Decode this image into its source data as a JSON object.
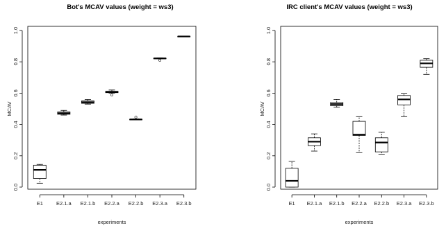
{
  "chart_data": [
    {
      "type": "boxplot",
      "title": "Bot's MCAV values (weight = ws3)",
      "xlabel": "experiments",
      "ylabel": "MCAV",
      "ylim": [
        0,
        1.0
      ],
      "yticks": [
        "0.0",
        "0.2",
        "0.4",
        "0.6",
        "0.8",
        "1.0"
      ],
      "categories": [
        "E1",
        "E2.1.a",
        "E2.1.b",
        "E2.2.a",
        "E2.2.b",
        "E2.3.a",
        "E2.3.b"
      ],
      "boxes": [
        {
          "min": 0.025,
          "q1": 0.055,
          "median": 0.11,
          "q3": 0.14,
          "max": 0.145,
          "outliers": []
        },
        {
          "min": 0.46,
          "q1": 0.465,
          "median": 0.472,
          "q3": 0.48,
          "max": 0.49,
          "outliers": []
        },
        {
          "min": 0.53,
          "q1": 0.535,
          "median": 0.542,
          "q3": 0.55,
          "max": 0.56,
          "outliers": []
        },
        {
          "min": 0.6,
          "q1": 0.603,
          "median": 0.607,
          "q3": 0.612,
          "max": 0.62,
          "outliers": [
            0.588
          ]
        },
        {
          "min": 0.43,
          "q1": 0.431,
          "median": 0.432,
          "q3": 0.433,
          "max": 0.435,
          "outliers": [
            0.447
          ]
        },
        {
          "min": 0.82,
          "q1": 0.821,
          "median": 0.822,
          "q3": 0.823,
          "max": 0.825,
          "outliers": [
            0.81
          ]
        },
        {
          "min": 0.96,
          "q1": 0.961,
          "median": 0.962,
          "q3": 0.963,
          "max": 0.965,
          "outliers": []
        }
      ]
    },
    {
      "type": "boxplot",
      "title": "IRC client's MCAV values (weight = ws3)",
      "xlabel": "experiments",
      "ylabel": "MCAV",
      "ylim": [
        0,
        1.0
      ],
      "yticks": [
        "0.0",
        "0.2",
        "0.4",
        "0.6",
        "0.8",
        "1.0"
      ],
      "categories": [
        "E1",
        "E2.1.a",
        "E2.1.b",
        "E2.2.a",
        "E2.2.b",
        "E2.3.a",
        "E2.3.b"
      ],
      "boxes": [
        {
          "min": 0.0,
          "q1": 0.0,
          "median": 0.04,
          "q3": 0.12,
          "max": 0.165,
          "outliers": []
        },
        {
          "min": 0.23,
          "q1": 0.265,
          "median": 0.29,
          "q3": 0.315,
          "max": 0.34,
          "outliers": []
        },
        {
          "min": 0.51,
          "q1": 0.52,
          "median": 0.53,
          "q3": 0.54,
          "max": 0.56,
          "outliers": []
        },
        {
          "min": 0.22,
          "q1": 0.33,
          "median": 0.335,
          "q3": 0.42,
          "max": 0.45,
          "outliers": []
        },
        {
          "min": 0.21,
          "q1": 0.225,
          "median": 0.285,
          "q3": 0.315,
          "max": 0.35,
          "outliers": []
        },
        {
          "min": 0.45,
          "q1": 0.525,
          "median": 0.56,
          "q3": 0.585,
          "max": 0.6,
          "outliers": []
        },
        {
          "min": 0.72,
          "q1": 0.765,
          "median": 0.79,
          "q3": 0.81,
          "max": 0.82,
          "outliers": []
        }
      ]
    }
  ]
}
